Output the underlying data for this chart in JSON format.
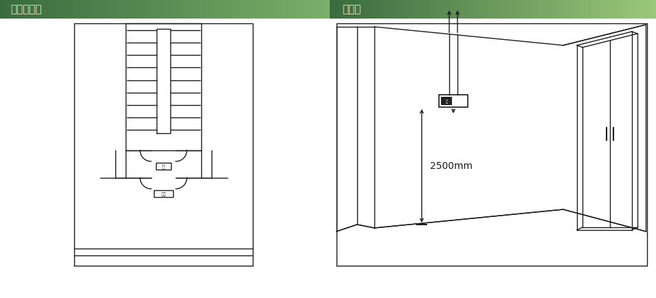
{
  "title_left": "平面设置图",
  "title_right": "透视图",
  "title_text_color": "#f0e6c0",
  "background_color": "#ffffff",
  "line_color": "#1a1a1a",
  "dimension_text": "2500mm",
  "header_grad_left_start": "#3a6b3e",
  "header_grad_left_end": "#7ab06a",
  "header_grad_right_start": "#3a6b3e",
  "header_grad_right_end": "#9ac87a"
}
